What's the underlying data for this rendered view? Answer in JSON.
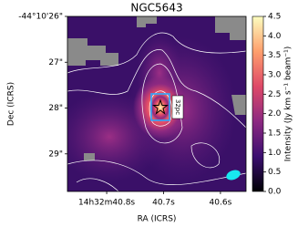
{
  "chart_data": {
    "type": "image",
    "title": "NGC5643",
    "x_label": "RA (ICRS)",
    "y_label": "Dec (ICRS)",
    "xlim": [
      40.869,
      40.555
    ],
    "xticks": [
      {
        "value": 40.8,
        "label": "14h32m40.8s"
      },
      {
        "value": 40.7,
        "label": "40.7s"
      },
      {
        "value": 40.6,
        "label": "40.6s"
      }
    ],
    "ylim": [
      26,
      29.82
    ],
    "yticks": [
      {
        "value": 26,
        "label": "-44°10'26\""
      },
      {
        "value": 27,
        "label": "27\""
      },
      {
        "value": 28,
        "label": "28\""
      },
      {
        "value": 29,
        "label": "29\""
      }
    ],
    "annotation": "32pc",
    "colorbar": {
      "label": "Intensity (Jy km s⁻¹ beam⁻¹)",
      "lim": [
        0,
        4.5
      ],
      "ticks": [
        {
          "value": 0,
          "label": "0.0"
        },
        {
          "value": 0.5,
          "label": "0.5"
        },
        {
          "value": 1,
          "label": "1.0"
        },
        {
          "value": 1.5,
          "label": "1.5"
        },
        {
          "value": 2,
          "label": "2.0"
        },
        {
          "value": 2.5,
          "label": "2.5"
        },
        {
          "value": 3,
          "label": "3.0"
        },
        {
          "value": 3.5,
          "label": "3.5"
        },
        {
          "value": 4,
          "label": "4.0"
        },
        {
          "value": 4.5,
          "label": "4.5"
        }
      ]
    }
  }
}
